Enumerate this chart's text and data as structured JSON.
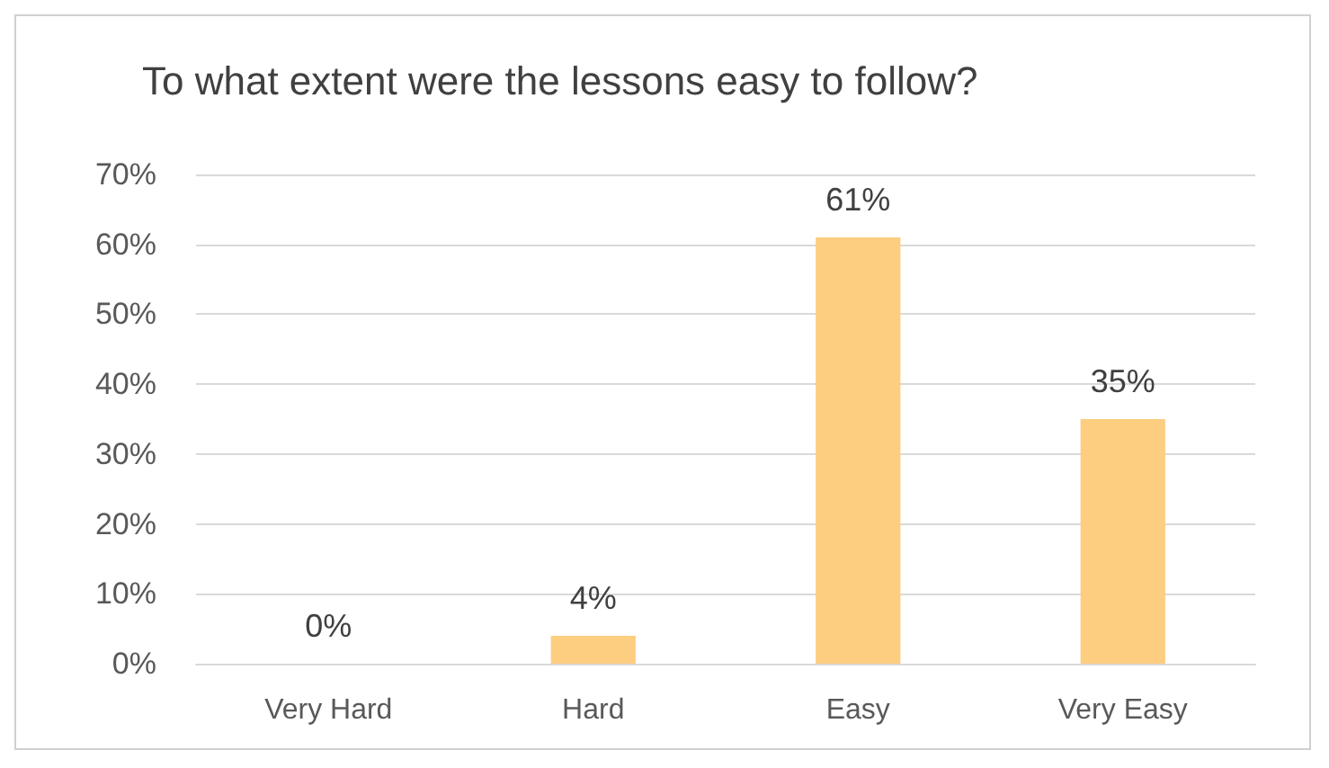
{
  "chart_data": {
    "type": "bar",
    "title": "To what extent were the lessons easy to follow?",
    "categories": [
      "Very Hard",
      "Hard",
      "Easy",
      "Very Easy"
    ],
    "values": [
      0,
      4,
      61,
      35
    ],
    "value_labels": [
      "0%",
      "4%",
      "61%",
      "35%"
    ],
    "color": "#fdcd80",
    "ylim": [
      0,
      70
    ],
    "yticks": [
      {
        "value": 0,
        "label": "0%"
      },
      {
        "value": 10,
        "label": "10%"
      },
      {
        "value": 20,
        "label": "20%"
      },
      {
        "value": 30,
        "label": "30%"
      },
      {
        "value": 40,
        "label": "40%"
      },
      {
        "value": 50,
        "label": "50%"
      },
      {
        "value": 60,
        "label": "60%"
      },
      {
        "value": 70,
        "label": "70%"
      }
    ],
    "grid": true
  }
}
